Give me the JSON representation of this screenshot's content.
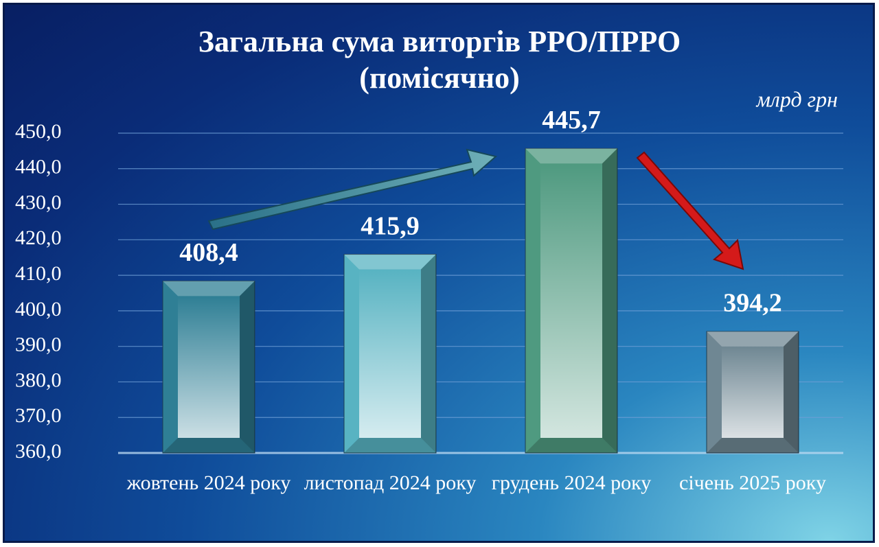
{
  "chart_data": {
    "type": "bar",
    "title": "Загальна сума виторгів РРО/ПРРО",
    "subtitle": "(помісячно)",
    "unit_label": "млрд грн",
    "categories": [
      "жовтень 2024 року",
      "листопад 2024 року",
      "грудень 2024 року",
      "січень 2025 року"
    ],
    "values": [
      408.4,
      415.9,
      445.7,
      394.2
    ],
    "value_labels": [
      "408,4",
      "415,9",
      "445,7",
      "394,2"
    ],
    "colors": [
      "#2f7f95",
      "#58b3c2",
      "#4f9a80",
      "#6f8793"
    ],
    "ylim": [
      360,
      450
    ],
    "yticks": [
      {
        "value": 360,
        "label": "360,0"
      },
      {
        "value": 370,
        "label": "370,0"
      },
      {
        "value": 380,
        "label": "380,0"
      },
      {
        "value": 390,
        "label": "390,0"
      },
      {
        "value": 400,
        "label": "400,0"
      },
      {
        "value": 410,
        "label": "410,0"
      },
      {
        "value": 420,
        "label": "420,0"
      },
      {
        "value": 430,
        "label": "430,0"
      },
      {
        "value": 440,
        "label": "440,0"
      },
      {
        "value": 450,
        "label": "450,0"
      }
    ],
    "grid": true
  }
}
